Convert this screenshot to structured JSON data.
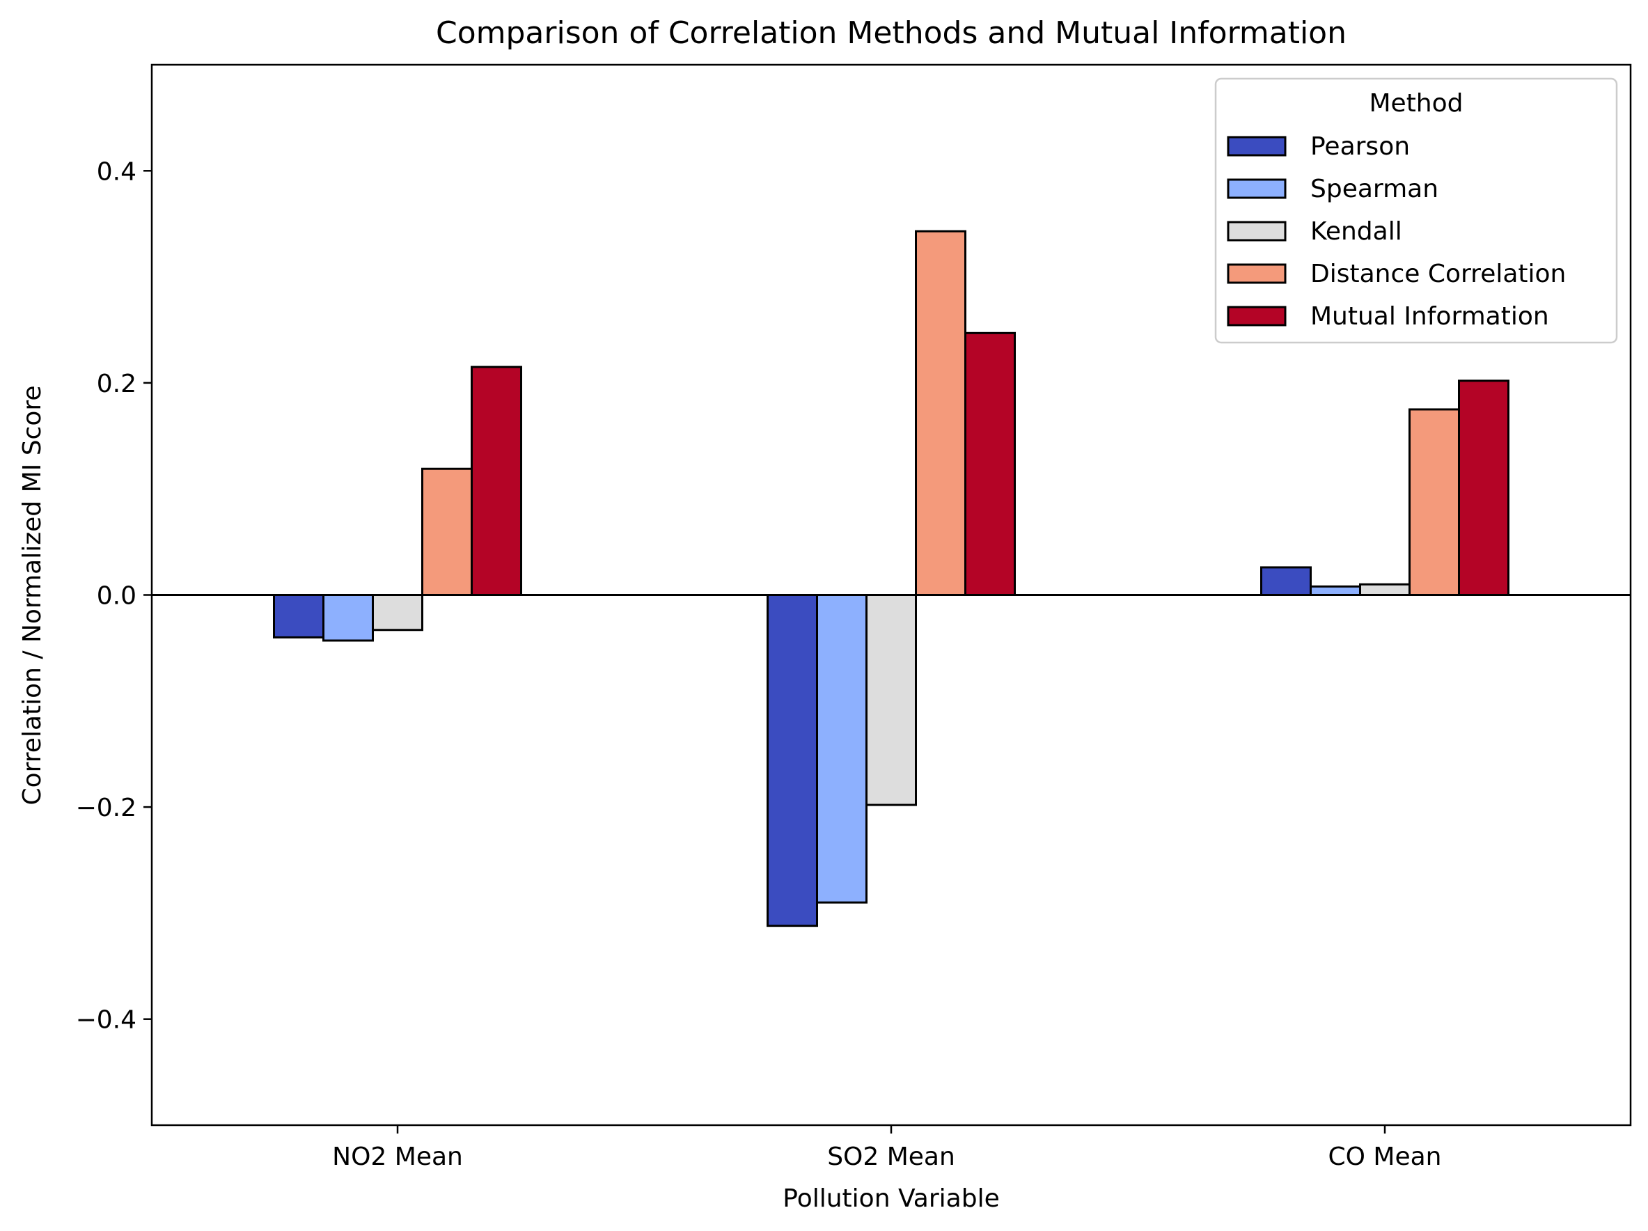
{
  "chart_data": {
    "type": "bar",
    "title": "Comparison of Correlation Methods and Mutual Information",
    "xlabel": "Pollution Variable",
    "ylabel": "Correlation / Normalized MI Score",
    "ylim": [
      -0.5,
      0.5
    ],
    "yticks": [
      -0.4,
      -0.2,
      0.0,
      0.2,
      0.4
    ],
    "ytick_labels": [
      "−0.4",
      "−0.2",
      "0.0",
      "0.2",
      "0.4"
    ],
    "categories": [
      "NO2 Mean",
      "SO2 Mean",
      "CO Mean"
    ],
    "legend": {
      "title": "Method",
      "placement": "top-right"
    },
    "zero_line": true,
    "grid": false,
    "series": [
      {
        "name": "Pearson",
        "color": "#3b4cc0",
        "values": [
          -0.04,
          -0.312,
          0.026
        ]
      },
      {
        "name": "Spearman",
        "color": "#8db0fe",
        "values": [
          -0.043,
          -0.29,
          0.008
        ]
      },
      {
        "name": "Kendall",
        "color": "#dddddd",
        "values": [
          -0.033,
          -0.198,
          0.01
        ]
      },
      {
        "name": "Distance Correlation",
        "color": "#f49a7b",
        "values": [
          0.119,
          0.343,
          0.175
        ]
      },
      {
        "name": "Mutual Information",
        "color": "#b40426",
        "values": [
          0.215,
          0.247,
          0.202
        ]
      }
    ]
  }
}
